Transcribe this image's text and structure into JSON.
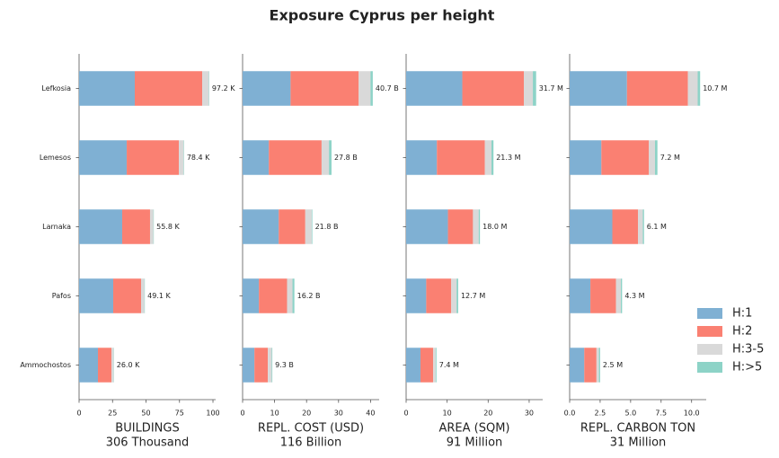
{
  "title": "Exposure Cyprus per height",
  "chart_data": [
    {
      "type": "bar",
      "xlabel": [
        "BUILDINGS",
        "306 Thousand"
      ],
      "categories": [
        "Lefkosia",
        "Lemesos",
        "Larnaka",
        "Pafos",
        "Ammochostos"
      ],
      "series": [
        {
          "name": "H:1",
          "color": "#7fb0d3",
          "values": [
            41.6,
            35.6,
            32.2,
            25.5,
            14.1
          ]
        },
        {
          "name": "H:2",
          "color": "#fa8072",
          "values": [
            50.4,
            38.9,
            20.8,
            20.8,
            10.1
          ]
        },
        {
          "name": "H:3-5",
          "color": "#d9d9d9",
          "values": [
            4.9,
            3.6,
            2.5,
            2.5,
            1.6
          ]
        },
        {
          "name": "H:>5",
          "color": "#8dd3c7",
          "values": [
            0.3,
            0.3,
            0.3,
            0.3,
            0.2
          ]
        }
      ],
      "totals": [
        97.2,
        78.4,
        55.8,
        49.1,
        26.0
      ],
      "total_labels": [
        "97.2 K",
        "78.4 K",
        "55.8 K",
        "49.1 K",
        "26.0 K"
      ],
      "xlim": [
        0,
        102
      ],
      "xticks": [
        0,
        25,
        50,
        75,
        100
      ]
    },
    {
      "type": "bar",
      "xlabel": [
        "REPL. COST (USD)",
        "116 Billion"
      ],
      "series": [
        {
          "color": "#7fb0d3",
          "values": [
            15.0,
            8.2,
            11.3,
            5.1,
            3.7
          ]
        },
        {
          "color": "#fa8072",
          "values": [
            21.3,
            16.5,
            8.3,
            8.8,
            4.2
          ]
        },
        {
          "color": "#d9d9d9",
          "values": [
            3.7,
            2.3,
            2.0,
            1.7,
            1.2
          ]
        },
        {
          "color": "#8dd3c7",
          "values": [
            0.7,
            0.8,
            0.2,
            0.6,
            0.2
          ]
        }
      ],
      "totals": [
        40.7,
        27.8,
        21.8,
        16.2,
        9.3
      ],
      "total_labels": [
        "40.7 B",
        "27.8 B",
        "21.8 B",
        "16.2 B",
        "9.3 B"
      ],
      "xlim": [
        0,
        42.7
      ],
      "xticks": [
        0,
        10,
        20,
        30,
        40
      ]
    },
    {
      "type": "bar",
      "xlabel": [
        "AREA (SQM)",
        "91 Million"
      ],
      "series": [
        {
          "color": "#7fb0d3",
          "values": [
            13.7,
            7.5,
            10.2,
            4.9,
            3.5
          ]
        },
        {
          "color": "#fa8072",
          "values": [
            15.0,
            11.7,
            6.1,
            6.1,
            3.1
          ]
        },
        {
          "color": "#d9d9d9",
          "values": [
            2.2,
            1.6,
            1.4,
            1.3,
            0.6
          ]
        },
        {
          "color": "#8dd3c7",
          "values": [
            0.8,
            0.5,
            0.3,
            0.4,
            0.2
          ]
        }
      ],
      "totals": [
        31.7,
        21.3,
        18.0,
        12.7,
        7.4
      ],
      "total_labels": [
        "31.7 M",
        "21.3 M",
        "18.0 M",
        "12.7 M",
        "7.4 M"
      ],
      "xlim": [
        0,
        33.3
      ],
      "xticks": [
        0,
        10,
        20,
        30
      ]
    },
    {
      "type": "bar",
      "xlabel": [
        "REPL. CARBON TON",
        "31 Million"
      ],
      "series": [
        {
          "color": "#7fb0d3",
          "values": [
            4.7,
            2.6,
            3.5,
            1.7,
            1.2
          ]
        },
        {
          "color": "#fa8072",
          "values": [
            5.0,
            3.9,
            2.1,
            2.1,
            1.0
          ]
        },
        {
          "color": "#d9d9d9",
          "values": [
            0.8,
            0.5,
            0.4,
            0.4,
            0.2
          ]
        },
        {
          "color": "#8dd3c7",
          "values": [
            0.2,
            0.2,
            0.1,
            0.1,
            0.1
          ]
        }
      ],
      "totals": [
        10.7,
        7.2,
        6.1,
        4.3,
        2.5
      ],
      "total_labels": [
        "10.7 M",
        "7.2 M",
        "6.1 M",
        "4.3 M",
        "2.5 M"
      ],
      "xlim": [
        0,
        11.2
      ],
      "xticks": [
        {
          "value": 0,
          "label": "0.0"
        },
        2.5,
        {
          "value": 5,
          "label": "5.0"
        },
        7.5,
        {
          "value": 10,
          "label": "10.0"
        }
      ]
    }
  ]
}
